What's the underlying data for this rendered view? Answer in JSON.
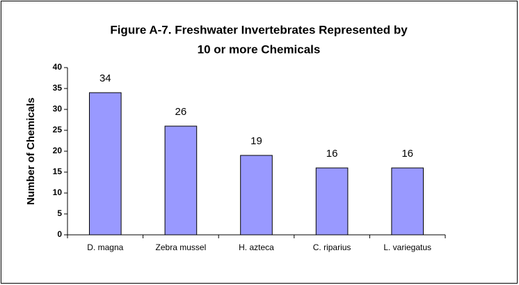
{
  "chart_data": {
    "type": "bar",
    "title": [
      "Figure A-7.  Freshwater Invertebrates Represented by",
      "10 or more Chemicals"
    ],
    "y_label": "Number of Chemicals",
    "categories": [
      "D. magna",
      "Zebra mussel",
      "H. azteca",
      "C. riparius",
      "L. variegatus"
    ],
    "values": [
      34,
      26,
      19,
      16,
      16
    ],
    "color": "#9999ff",
    "ylim": [
      0,
      40
    ],
    "yticks": [
      0,
      5,
      10,
      15,
      20,
      25,
      30,
      35,
      40
    ],
    "grid": false
  }
}
